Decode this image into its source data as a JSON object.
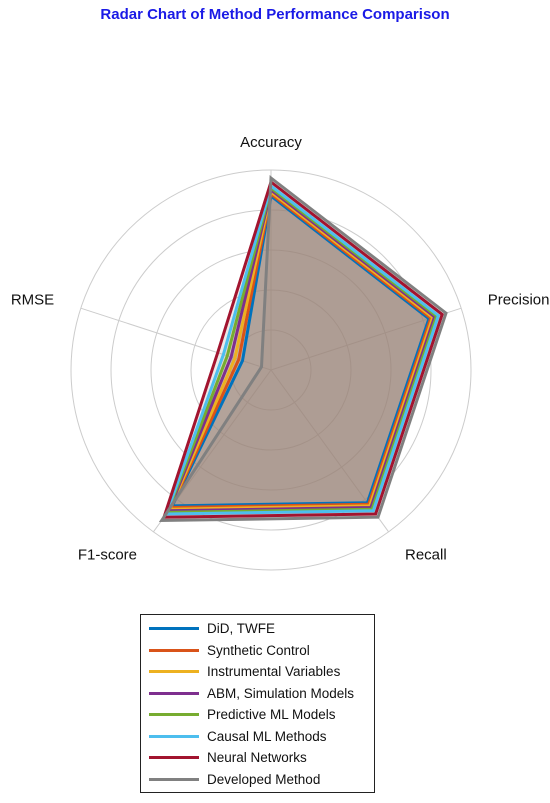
{
  "chart_data": {
    "type": "radar",
    "title": "Radar Chart of Method Performance Comparison",
    "title_color": "#1a1ae6",
    "axes": [
      "Accuracy",
      "Precision",
      "Recall",
      "F1-score",
      "RMSE"
    ],
    "rlim": [
      0,
      1
    ],
    "grid": true,
    "legend_position": "bottom",
    "series": [
      {
        "name": "DiD, TWFE",
        "color": "#0072BD",
        "values": [
          0.87,
          0.83,
          0.82,
          0.84,
          0.15
        ]
      },
      {
        "name": "Synthetic Control",
        "color": "#D95319",
        "values": [
          0.88,
          0.84,
          0.83,
          0.85,
          0.17
        ]
      },
      {
        "name": "Instrumental Variables",
        "color": "#EDB120",
        "values": [
          0.89,
          0.85,
          0.84,
          0.86,
          0.19
        ]
      },
      {
        "name": "ABM, Simulation Models",
        "color": "#7E2F8E",
        "values": [
          0.9,
          0.86,
          0.85,
          0.87,
          0.21
        ]
      },
      {
        "name": "Predictive ML Models",
        "color": "#77AC30",
        "values": [
          0.91,
          0.87,
          0.86,
          0.88,
          0.23
        ]
      },
      {
        "name": "Causal ML Methods",
        "color": "#4DBEEE",
        "values": [
          0.92,
          0.88,
          0.87,
          0.89,
          0.25
        ]
      },
      {
        "name": "Neural Networks",
        "color": "#A2142F",
        "values": [
          0.94,
          0.9,
          0.89,
          0.91,
          0.28
        ]
      },
      {
        "name": "Developed Method",
        "color": "#808080",
        "values": [
          0.96,
          0.92,
          0.91,
          0.93,
          0.05
        ]
      }
    ],
    "fill_color": "#9a857c",
    "gridline_color": "#cccccc"
  }
}
